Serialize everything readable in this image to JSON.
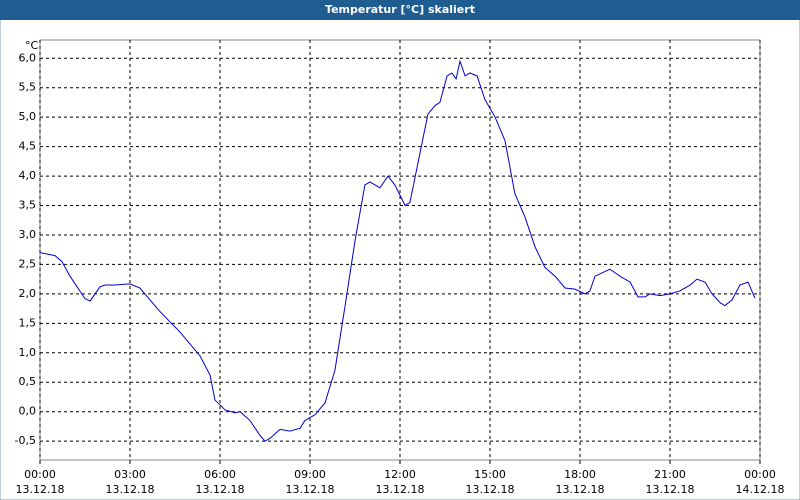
{
  "chart_data": {
    "type": "line",
    "title": "Temperatur [°C] skaliert",
    "y_unit": "°C",
    "x": [
      0,
      0.5,
      0.73,
      1,
      1.5,
      1.67,
      2,
      2.17,
      2.5,
      3,
      3.33,
      4,
      4.67,
      5.33,
      5.67,
      5.83,
      6.17,
      6.5,
      6.67,
      7,
      7.33,
      7.5,
      7.67,
      8,
      8.33,
      8.67,
      8.83,
      9.17,
      9.5,
      9.83,
      10.17,
      10.5,
      10.83,
      11,
      11.33,
      11.6,
      11.83,
      12.17,
      12.33,
      12.67,
      12.93,
      13.17,
      13.33,
      13.57,
      13.73,
      13.87,
      14,
      14.17,
      14.33,
      14.57,
      14.83,
      15.17,
      15.5,
      15.83,
      16.17,
      16.5,
      16.83,
      17.17,
      17.5,
      17.83,
      18.17,
      18.33,
      18.5,
      19,
      19.33,
      19.67,
      19.93,
      20.17,
      20.33,
      20.67,
      21,
      21.33,
      21.67,
      21.9,
      22.17,
      22.4,
      22.67,
      22.83,
      23.07,
      23.33,
      23.6,
      23.83
    ],
    "series": [
      {
        "name": "Temperatur",
        "color": "#0000cc",
        "values": [
          2.7,
          2.65,
          2.55,
          2.3,
          1.92,
          1.88,
          2.12,
          2.15,
          2.15,
          2.17,
          2.1,
          1.7,
          1.35,
          0.95,
          0.62,
          0.2,
          0.03,
          -0.02,
          0.0,
          -0.15,
          -0.4,
          -0.5,
          -0.45,
          -0.3,
          -0.33,
          -0.28,
          -0.15,
          -0.05,
          0.15,
          0.7,
          1.8,
          2.9,
          3.85,
          3.9,
          3.8,
          4.0,
          3.85,
          3.5,
          3.55,
          4.4,
          5.05,
          5.2,
          5.25,
          5.7,
          5.75,
          5.65,
          5.95,
          5.7,
          5.75,
          5.7,
          5.3,
          5.0,
          4.6,
          3.7,
          3.3,
          2.8,
          2.45,
          2.3,
          2.1,
          2.08,
          2.0,
          2.05,
          2.3,
          2.42,
          2.3,
          2.2,
          1.95,
          1.95,
          2.0,
          1.97,
          2.0,
          2.05,
          2.15,
          2.25,
          2.2,
          2.0,
          1.85,
          1.8,
          1.9,
          2.15,
          2.2,
          1.93
        ]
      }
    ],
    "xlim": [
      0,
      24
    ],
    "xticks": [
      {
        "value": 0,
        "label": "00:00",
        "date": "13.12.18"
      },
      {
        "value": 3,
        "label": "03:00",
        "date": "13.12.18"
      },
      {
        "value": 6,
        "label": "06:00",
        "date": "13.12.18"
      },
      {
        "value": 9,
        "label": "09:00",
        "date": "13.12.18"
      },
      {
        "value": 12,
        "label": "12:00",
        "date": "13.12.18"
      },
      {
        "value": 15,
        "label": "15:00",
        "date": "13.12.18"
      },
      {
        "value": 18,
        "label": "18:00",
        "date": "13.12.18"
      },
      {
        "value": 21,
        "label": "21:00",
        "date": "13.12.18"
      },
      {
        "value": 24,
        "label": "00:00",
        "date": "14.12.18"
      }
    ],
    "ylim": [
      -0.82,
      6.31
    ],
    "yticks": [
      {
        "value": -0.5,
        "label": "-0,5"
      },
      {
        "value": 0,
        "label": "0,0"
      },
      {
        "value": 0.5,
        "label": "0,5"
      },
      {
        "value": 1,
        "label": "1,0"
      },
      {
        "value": 1.5,
        "label": "1,5"
      },
      {
        "value": 2,
        "label": "2,0"
      },
      {
        "value": 2.5,
        "label": "2,5"
      },
      {
        "value": 3,
        "label": "3,0"
      },
      {
        "value": 3.5,
        "label": "3,5"
      },
      {
        "value": 4,
        "label": "4,0"
      },
      {
        "value": 4.5,
        "label": "4,5"
      },
      {
        "value": 5,
        "label": "5,0"
      },
      {
        "value": 5.5,
        "label": "5,5"
      },
      {
        "value": 6,
        "label": "6,0"
      }
    ],
    "grid": true
  }
}
